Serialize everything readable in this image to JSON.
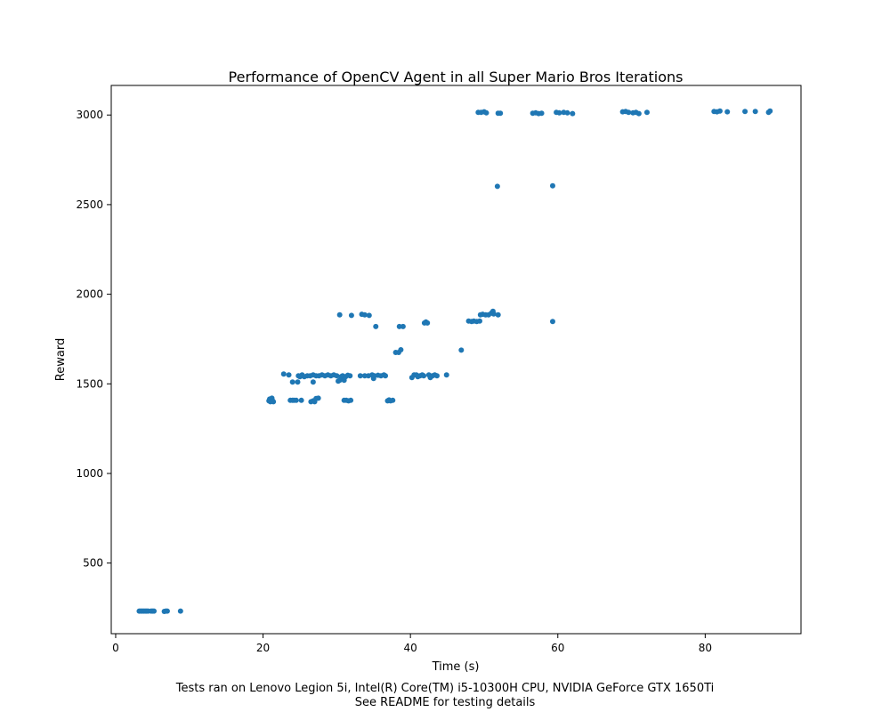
{
  "chart_data": {
    "type": "scatter",
    "title": "Performance of OpenCV Agent in all Super Mario Bros Iterations",
    "xlabel": "Time (s)",
    "ylabel": "Reward",
    "xlim": [
      -0.6,
      93.0
    ],
    "ylim": [
      106,
      3165
    ],
    "xticks": [
      0,
      20,
      40,
      60,
      80
    ],
    "yticks": [
      500,
      1000,
      1500,
      2000,
      2500,
      3000
    ],
    "grid": false,
    "legend": "none",
    "marker_color": "#1f77b4",
    "series": [
      {
        "points": [
          [
            3.2,
            232
          ],
          [
            3.4,
            232
          ],
          [
            3.6,
            232
          ],
          [
            3.8,
            232
          ],
          [
            4.0,
            232
          ],
          [
            4.2,
            232
          ],
          [
            4.4,
            232
          ],
          [
            4.8,
            232
          ],
          [
            5.0,
            232
          ],
          [
            5.2,
            232
          ],
          [
            6.6,
            230
          ],
          [
            6.8,
            232
          ],
          [
            7.0,
            232
          ],
          [
            8.8,
            232
          ],
          [
            20.8,
            1405
          ],
          [
            20.9,
            1415
          ],
          [
            21.0,
            1400
          ],
          [
            21.1,
            1410
          ],
          [
            21.2,
            1420
          ],
          [
            21.3,
            1405
          ],
          [
            21.4,
            1400
          ],
          [
            22.8,
            1555
          ],
          [
            23.5,
            1550
          ],
          [
            23.7,
            1408
          ],
          [
            24.0,
            1408
          ],
          [
            24.2,
            1408
          ],
          [
            24.5,
            1408
          ],
          [
            25.2,
            1408
          ],
          [
            24.0,
            1510
          ],
          [
            24.7,
            1510
          ],
          [
            24.8,
            1545
          ],
          [
            25.0,
            1540
          ],
          [
            25.3,
            1550
          ],
          [
            25.6,
            1540
          ],
          [
            26.0,
            1545
          ],
          [
            26.4,
            1545
          ],
          [
            26.8,
            1550
          ],
          [
            26.5,
            1400
          ],
          [
            26.8,
            1405
          ],
          [
            27.0,
            1400
          ],
          [
            27.2,
            1418
          ],
          [
            27.5,
            1420
          ],
          [
            26.8,
            1510
          ],
          [
            27.2,
            1545
          ],
          [
            27.6,
            1545
          ],
          [
            28.0,
            1550
          ],
          [
            28.4,
            1545
          ],
          [
            28.8,
            1550
          ],
          [
            29.2,
            1545
          ],
          [
            29.6,
            1550
          ],
          [
            30.0,
            1545
          ],
          [
            30.2,
            1515
          ],
          [
            30.4,
            1520
          ],
          [
            30.6,
            1540
          ],
          [
            30.4,
            1885
          ],
          [
            30.8,
            1545
          ],
          [
            31.0,
            1520
          ],
          [
            31.2,
            1540
          ],
          [
            31.0,
            1408
          ],
          [
            31.3,
            1408
          ],
          [
            31.6,
            1405
          ],
          [
            31.9,
            1408
          ],
          [
            31.5,
            1548
          ],
          [
            31.8,
            1545
          ],
          [
            32.0,
            1882
          ],
          [
            33.2,
            1545
          ],
          [
            33.4,
            1888
          ],
          [
            33.8,
            1545
          ],
          [
            33.8,
            1885
          ],
          [
            34.3,
            1545
          ],
          [
            34.4,
            1882
          ],
          [
            34.8,
            1550
          ],
          [
            35.0,
            1530
          ],
          [
            35.1,
            1545
          ],
          [
            35.3,
            1820
          ],
          [
            35.6,
            1548
          ],
          [
            36.0,
            1545
          ],
          [
            36.4,
            1550
          ],
          [
            36.6,
            1545
          ],
          [
            36.9,
            1405
          ],
          [
            37.1,
            1410
          ],
          [
            37.3,
            1405
          ],
          [
            37.6,
            1408
          ],
          [
            38.0,
            1675
          ],
          [
            38.4,
            1675
          ],
          [
            38.5,
            1820
          ],
          [
            38.7,
            1690
          ],
          [
            39.0,
            1820
          ],
          [
            40.2,
            1535
          ],
          [
            40.5,
            1550
          ],
          [
            40.8,
            1550
          ],
          [
            41.0,
            1540
          ],
          [
            41.3,
            1545
          ],
          [
            41.6,
            1550
          ],
          [
            41.8,
            1545
          ],
          [
            41.9,
            1840
          ],
          [
            42.1,
            1845
          ],
          [
            42.3,
            1840
          ],
          [
            42.5,
            1550
          ],
          [
            42.7,
            1535
          ],
          [
            43.0,
            1545
          ],
          [
            43.3,
            1550
          ],
          [
            43.6,
            1545
          ],
          [
            44.9,
            1550
          ],
          [
            46.9,
            1688
          ],
          [
            47.9,
            1850
          ],
          [
            48.3,
            1848
          ],
          [
            48.6,
            1850
          ],
          [
            49.0,
            1848
          ],
          [
            49.4,
            1850
          ],
          [
            49.5,
            1885
          ],
          [
            49.8,
            1888
          ],
          [
            50.2,
            1885
          ],
          [
            50.6,
            1885
          ],
          [
            51.0,
            1895
          ],
          [
            51.3,
            1890
          ],
          [
            51.2,
            1905
          ],
          [
            51.9,
            1885
          ],
          [
            59.3,
            1848
          ],
          [
            49.2,
            3015
          ],
          [
            49.6,
            3015
          ],
          [
            50.0,
            3018
          ],
          [
            50.3,
            3012
          ],
          [
            51.9,
            3010
          ],
          [
            52.2,
            3010
          ],
          [
            51.8,
            2602
          ],
          [
            56.6,
            3010
          ],
          [
            57.0,
            3012
          ],
          [
            57.4,
            3008
          ],
          [
            57.8,
            3010
          ],
          [
            59.3,
            2605
          ],
          [
            59.8,
            3015
          ],
          [
            60.2,
            3012
          ],
          [
            60.8,
            3015
          ],
          [
            61.3,
            3012
          ],
          [
            62.0,
            3008
          ],
          [
            68.8,
            3018
          ],
          [
            69.2,
            3020
          ],
          [
            69.6,
            3015
          ],
          [
            70.2,
            3012
          ],
          [
            70.6,
            3015
          ],
          [
            71.0,
            3008
          ],
          [
            72.1,
            3015
          ],
          [
            81.2,
            3020
          ],
          [
            81.6,
            3018
          ],
          [
            82.0,
            3022
          ],
          [
            83.0,
            3018
          ],
          [
            85.4,
            3020
          ],
          [
            86.8,
            3020
          ],
          [
            88.6,
            3015
          ],
          [
            88.8,
            3022
          ]
        ]
      }
    ]
  },
  "footer": {
    "line1": "Tests ran on Lenovo Legion 5i, Intel(R) Core(TM) i5-10300H CPU, NVIDIA GeForce GTX 1650Ti",
    "line2": "See README for testing details"
  }
}
